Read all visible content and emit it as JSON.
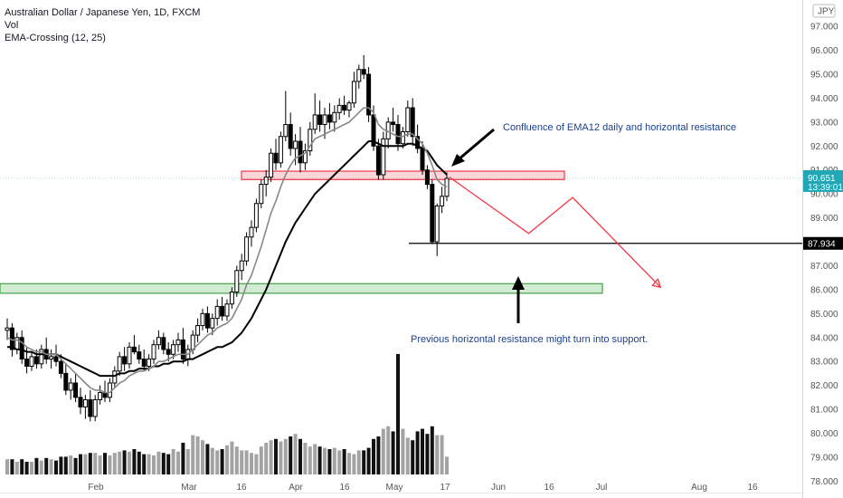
{
  "chart_data": {
    "type": "candlestick",
    "title": "Australian Dollar / Japanese Yen, 1D, FXCM",
    "legend": [
      "Vol",
      "EMA-Crossing (12, 25)"
    ],
    "currency_label": "JPY",
    "y_ticks": [
      "97.000",
      "96.000",
      "95.000",
      "94.000",
      "93.000",
      "92.000",
      "91.000",
      "90.000",
      "89.000",
      "88.000",
      "87.000",
      "86.000",
      "85.000",
      "84.000",
      "83.000",
      "82.000",
      "81.000",
      "80.000",
      "79.000",
      "78.000"
    ],
    "ylim": [
      77.9,
      97.8
    ],
    "x_ticks": [
      "Feb",
      "Mar",
      "16",
      "Apr",
      "16",
      "May",
      "17",
      "Jun",
      "16",
      "Jul",
      "Aug",
      "16"
    ],
    "last_price": "90.651",
    "countdown": "13:39:01",
    "level_price": "87.934",
    "level_value": 87.934,
    "resistance_zone": [
      90.6,
      90.95
    ],
    "support_zone": [
      85.85,
      86.25
    ],
    "annotation_top": "Confluence of EMA12 daily and horizontal resistance",
    "annotation_bottom": "Previous horizontal resistance might turn into support.",
    "projection_path": [
      [
        90.7,
        0
      ],
      [
        88.35,
        9
      ],
      [
        89.85,
        14
      ],
      [
        86.1,
        24
      ]
    ],
    "candles": [
      [
        84.3,
        84.8,
        83.9,
        84.4
      ],
      [
        84.4,
        84.6,
        83.2,
        83.5
      ],
      [
        83.5,
        84.2,
        83.3,
        84.0
      ],
      [
        84.0,
        84.3,
        82.9,
        83.1
      ],
      [
        83.1,
        83.6,
        82.5,
        82.8
      ],
      [
        82.8,
        83.4,
        82.6,
        83.2
      ],
      [
        83.2,
        83.5,
        82.7,
        82.9
      ],
      [
        82.9,
        83.7,
        82.7,
        83.5
      ],
      [
        83.5,
        84.0,
        82.9,
        83.1
      ],
      [
        83.1,
        83.5,
        82.7,
        83.2
      ],
      [
        83.2,
        83.7,
        82.8,
        83.0
      ],
      [
        83.0,
        83.3,
        82.3,
        82.5
      ],
      [
        82.5,
        82.9,
        81.6,
        81.8
      ],
      [
        81.8,
        82.3,
        81.4,
        82.1
      ],
      [
        82.1,
        82.5,
        81.3,
        81.5
      ],
      [
        81.5,
        81.9,
        80.8,
        81.1
      ],
      [
        81.1,
        81.6,
        80.6,
        81.4
      ],
      [
        81.4,
        81.8,
        80.5,
        80.7
      ],
      [
        80.7,
        81.6,
        80.5,
        81.4
      ],
      [
        81.4,
        82.0,
        81.2,
        81.7
      ],
      [
        81.7,
        82.2,
        81.3,
        81.5
      ],
      [
        81.5,
        82.3,
        81.3,
        82.1
      ],
      [
        82.1,
        82.8,
        81.9,
        82.6
      ],
      [
        82.6,
        83.4,
        82.4,
        83.2
      ],
      [
        83.2,
        83.6,
        82.6,
        82.9
      ],
      [
        82.9,
        83.8,
        82.7,
        83.6
      ],
      [
        83.6,
        84.1,
        83.3,
        83.4
      ],
      [
        83.4,
        83.7,
        82.9,
        83.1
      ],
      [
        83.1,
        83.5,
        82.6,
        82.8
      ],
      [
        82.8,
        83.3,
        82.6,
        83.1
      ],
      [
        83.1,
        83.9,
        82.9,
        83.7
      ],
      [
        83.7,
        84.3,
        83.5,
        84.0
      ],
      [
        84.0,
        84.2,
        83.3,
        83.5
      ],
      [
        83.5,
        83.8,
        83.0,
        83.3
      ],
      [
        83.3,
        83.9,
        83.1,
        83.7
      ],
      [
        83.7,
        84.2,
        83.4,
        83.9
      ],
      [
        83.9,
        84.4,
        82.9,
        83.1
      ],
      [
        83.1,
        83.7,
        82.8,
        83.5
      ],
      [
        83.5,
        84.3,
        83.3,
        84.1
      ],
      [
        84.1,
        84.8,
        83.8,
        84.5
      ],
      [
        84.5,
        85.2,
        84.3,
        85.0
      ],
      [
        85.0,
        85.3,
        84.2,
        84.4
      ],
      [
        84.4,
        85.0,
        84.1,
        84.8
      ],
      [
        84.8,
        85.6,
        84.5,
        85.3
      ],
      [
        85.3,
        85.7,
        84.7,
        84.9
      ],
      [
        84.9,
        85.6,
        84.7,
        85.4
      ],
      [
        85.4,
        86.1,
        85.2,
        85.9
      ],
      [
        85.9,
        87.0,
        85.7,
        86.8
      ],
      [
        86.8,
        87.5,
        86.4,
        87.2
      ],
      [
        87.2,
        88.4,
        87.0,
        88.2
      ],
      [
        88.2,
        88.9,
        87.8,
        88.6
      ],
      [
        88.6,
        89.8,
        88.4,
        89.6
      ],
      [
        89.6,
        90.6,
        89.4,
        90.4
      ],
      [
        90.4,
        91.0,
        89.9,
        90.7
      ],
      [
        90.7,
        91.9,
        90.5,
        91.7
      ],
      [
        91.7,
        92.3,
        91.0,
        91.3
      ],
      [
        91.3,
        92.6,
        91.1,
        92.4
      ],
      [
        92.4,
        94.3,
        92.2,
        92.9
      ],
      [
        92.9,
        93.4,
        91.6,
        91.9
      ],
      [
        91.9,
        92.5,
        91.2,
        92.2
      ],
      [
        92.2,
        92.8,
        90.9,
        91.3
      ],
      [
        91.3,
        92.1,
        91.0,
        91.8
      ],
      [
        91.8,
        93.0,
        91.6,
        92.7
      ],
      [
        92.7,
        94.2,
        92.5,
        93.3
      ],
      [
        93.3,
        93.9,
        92.6,
        92.9
      ],
      [
        92.9,
        93.6,
        92.3,
        93.3
      ],
      [
        93.3,
        93.8,
        92.7,
        93.0
      ],
      [
        93.0,
        93.7,
        92.6,
        93.4
      ],
      [
        93.4,
        94.0,
        93.1,
        93.7
      ],
      [
        93.7,
        94.1,
        93.3,
        93.5
      ],
      [
        93.5,
        93.9,
        93.2,
        93.8
      ],
      [
        93.8,
        95.1,
        93.6,
        94.7
      ],
      [
        94.7,
        95.4,
        94.4,
        95.2
      ],
      [
        95.2,
        95.8,
        94.8,
        95.0
      ],
      [
        95.0,
        95.3,
        93.0,
        93.3
      ],
      [
        93.3,
        93.7,
        91.8,
        92.0
      ],
      [
        92.0,
        92.3,
        90.6,
        90.8
      ],
      [
        90.8,
        92.6,
        90.6,
        92.3
      ],
      [
        92.3,
        93.2,
        91.9,
        93.0
      ],
      [
        93.0,
        93.6,
        92.6,
        92.9
      ],
      [
        92.9,
        93.3,
        91.8,
        92.1
      ],
      [
        92.1,
        92.8,
        91.9,
        92.6
      ],
      [
        92.6,
        93.9,
        92.4,
        93.6
      ],
      [
        93.6,
        94.0,
        92.0,
        92.4
      ],
      [
        92.4,
        92.9,
        91.7,
        91.9
      ],
      [
        91.9,
        92.2,
        90.8,
        91.0
      ],
      [
        91.0,
        91.2,
        90.2,
        90.4
      ],
      [
        90.4,
        90.6,
        87.9,
        88.0
      ],
      [
        88.0,
        89.6,
        87.4,
        89.5
      ],
      [
        89.5,
        90.3,
        89.2,
        89.9
      ],
      [
        89.9,
        90.9,
        89.7,
        90.65
      ]
    ],
    "volume": [
      1.2,
      1.2,
      1.0,
      1.2,
      1.0,
      1.0,
      1.3,
      1.1,
      1.3,
      1.2,
      1.1,
      1.4,
      1.4,
      1.5,
      1.3,
      1.6,
      1.6,
      1.7,
      1.7,
      1.5,
      1.7,
      1.5,
      1.7,
      1.8,
      1.9,
      1.8,
      2.0,
      1.8,
      1.6,
      1.6,
      1.5,
      1.8,
      1.7,
      1.6,
      2.0,
      1.8,
      2.5,
      2.0,
      3.1,
      3.0,
      2.7,
      2.4,
      2.1,
      1.9,
      2.0,
      2.3,
      2.6,
      2.2,
      1.9,
      1.9,
      1.7,
      1.6,
      2.2,
      2.5,
      2.7,
      2.8,
      2.6,
      2.8,
      3.0,
      3.2,
      2.8,
      2.5,
      2.2,
      2.4,
      2.2,
      2.1,
      2.0,
      2.1,
      1.9,
      2.0,
      1.7,
      1.6,
      1.9,
      1.9,
      2.1,
      2.8,
      3.0,
      3.6,
      3.8,
      3.4,
      9.5,
      3.6,
      2.9,
      2.7,
      3.4,
      3.6,
      3.2,
      3.8,
      3.1,
      3.1,
      1.4
    ]
  },
  "ema_fast": [
    84.0,
    83.9,
    83.9,
    83.8,
    83.6,
    83.5,
    83.4,
    83.4,
    83.3,
    83.3,
    83.3,
    83.1,
    82.9,
    82.7,
    82.5,
    82.3,
    82.1,
    81.9,
    81.8,
    81.8,
    81.7,
    81.7,
    81.9,
    82.1,
    82.2,
    82.4,
    82.5,
    82.6,
    82.6,
    82.7,
    82.8,
    83.0,
    83.0,
    83.1,
    83.2,
    83.3,
    83.3,
    83.3,
    83.5,
    83.7,
    83.9,
    84.1,
    84.2,
    84.4,
    84.5,
    84.6,
    84.8,
    85.2,
    85.6,
    86.2,
    86.6,
    87.2,
    87.8,
    88.5,
    89.2,
    89.7,
    90.3,
    90.8,
    91.2,
    91.5,
    91.6,
    91.7,
    92.0,
    92.3,
    92.4,
    92.5,
    92.6,
    92.7,
    92.8,
    92.9,
    93.0,
    93.2,
    93.4,
    93.6,
    93.6,
    93.4,
    92.9,
    92.7,
    92.6,
    92.5,
    92.4,
    92.4,
    92.5,
    92.5,
    92.3,
    92.1,
    91.7,
    91.2,
    90.6,
    90.4,
    90.3
  ],
  "ema_slow": [
    83.6,
    83.6,
    83.5,
    83.5,
    83.4,
    83.4,
    83.3,
    83.3,
    83.3,
    83.3,
    83.3,
    83.2,
    83.1,
    83.0,
    82.9,
    82.8,
    82.7,
    82.6,
    82.5,
    82.4,
    82.4,
    82.4,
    82.4,
    82.5,
    82.5,
    82.6,
    82.6,
    82.7,
    82.7,
    82.7,
    82.8,
    82.8,
    82.9,
    82.9,
    83.0,
    83.0,
    83.0,
    83.1,
    83.1,
    83.2,
    83.3,
    83.4,
    83.5,
    83.6,
    83.6,
    83.7,
    83.8,
    84.0,
    84.2,
    84.5,
    84.8,
    85.2,
    85.6,
    86.0,
    86.5,
    87.0,
    87.5,
    88.0,
    88.4,
    88.8,
    89.1,
    89.4,
    89.7,
    90.0,
    90.2,
    90.4,
    90.6,
    90.8,
    91.0,
    91.2,
    91.4,
    91.6,
    91.8,
    92.0,
    92.2,
    92.2,
    92.1,
    92.0,
    92.0,
    92.0,
    92.0,
    92.0,
    92.1,
    92.1,
    92.0,
    91.9,
    91.8,
    91.5,
    91.2,
    91.0,
    90.8
  ]
}
